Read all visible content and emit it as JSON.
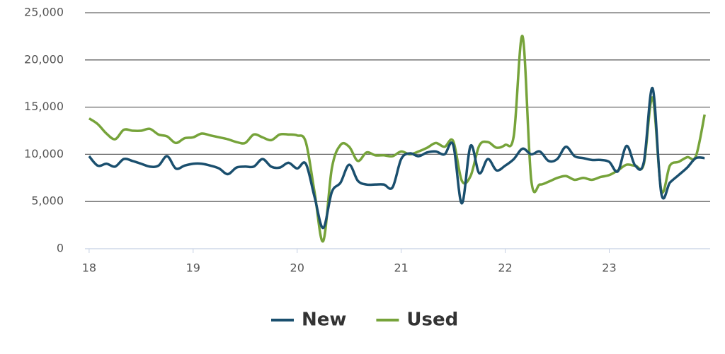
{
  "chart_data": {
    "type": "line",
    "x": [
      18,
      18.083,
      18.167,
      18.25,
      18.333,
      18.417,
      18.5,
      18.583,
      18.667,
      18.75,
      18.833,
      18.917,
      19,
      19.083,
      19.167,
      19.25,
      19.333,
      19.417,
      19.5,
      19.583,
      19.667,
      19.75,
      19.833,
      19.917,
      20,
      20.083,
      20.167,
      20.25,
      20.333,
      20.417,
      20.5,
      20.583,
      20.667,
      20.75,
      20.833,
      20.917,
      21,
      21.083,
      21.167,
      21.25,
      21.333,
      21.417,
      21.5,
      21.583,
      21.667,
      21.75,
      21.833,
      21.917,
      22,
      22.083,
      22.167,
      22.25,
      22.333,
      22.417,
      22.5,
      22.583,
      22.667,
      22.75,
      22.833,
      22.917,
      23,
      23.083,
      23.167,
      23.25,
      23.333,
      23.417,
      23.5,
      23.583,
      23.667,
      23.75,
      23.833,
      23.917
    ],
    "series": [
      {
        "name": "New",
        "color": "#1a4f6e",
        "values": [
          9800,
          8800,
          9000,
          8700,
          9500,
          9300,
          9000,
          8700,
          8800,
          9800,
          8500,
          8800,
          9000,
          9000,
          8800,
          8500,
          7900,
          8600,
          8700,
          8700,
          9500,
          8700,
          8600,
          9100,
          8500,
          9000,
          5500,
          2200,
          6000,
          7000,
          8900,
          7200,
          6800,
          6800,
          6800,
          6500,
          9500,
          10100,
          9800,
          10200,
          10300,
          10000,
          11000,
          4800,
          10900,
          8000,
          9500,
          8300,
          8800,
          9500,
          10600,
          10000,
          10300,
          9300,
          9500,
          10800,
          9800,
          9600,
          9400,
          9400,
          9200,
          8200,
          10900,
          8800,
          9200,
          17000,
          5900,
          7000,
          7800,
          8600,
          9600,
          9600
        ]
      },
      {
        "name": "Used",
        "color": "#76a33a",
        "values": [
          13800,
          13200,
          12200,
          11600,
          12600,
          12500,
          12500,
          12700,
          12100,
          11900,
          11200,
          11700,
          11800,
          12200,
          12000,
          11800,
          11600,
          11300,
          11200,
          12100,
          11800,
          11500,
          12100,
          12100,
          12000,
          11300,
          6000,
          800,
          8500,
          11000,
          10800,
          9300,
          10200,
          9900,
          9900,
          9800,
          10300,
          10000,
          10300,
          10700,
          11200,
          10800,
          11400,
          7200,
          7700,
          10900,
          11300,
          10700,
          11000,
          12000,
          22500,
          7300,
          6800,
          7100,
          7500,
          7700,
          7300,
          7500,
          7300,
          7600,
          7800,
          8300,
          8900,
          8800,
          9000,
          16000,
          6200,
          8800,
          9200,
          9700,
          9800,
          14200
        ]
      }
    ],
    "xlim": [
      17.96,
      23.97
    ],
    "xticks": [
      18,
      19,
      20,
      21,
      22,
      23
    ],
    "ylim": [
      0,
      25000
    ],
    "yticks": [
      0,
      {
        "value": 5000,
        "label": "5,000"
      },
      {
        "value": 10000,
        "label": "10,000"
      },
      {
        "value": 15000,
        "label": "15,000"
      },
      {
        "value": 20000,
        "label": "20,000"
      },
      {
        "value": 25000,
        "label": "25,000"
      }
    ],
    "grid": true,
    "legend": "bottom"
  }
}
